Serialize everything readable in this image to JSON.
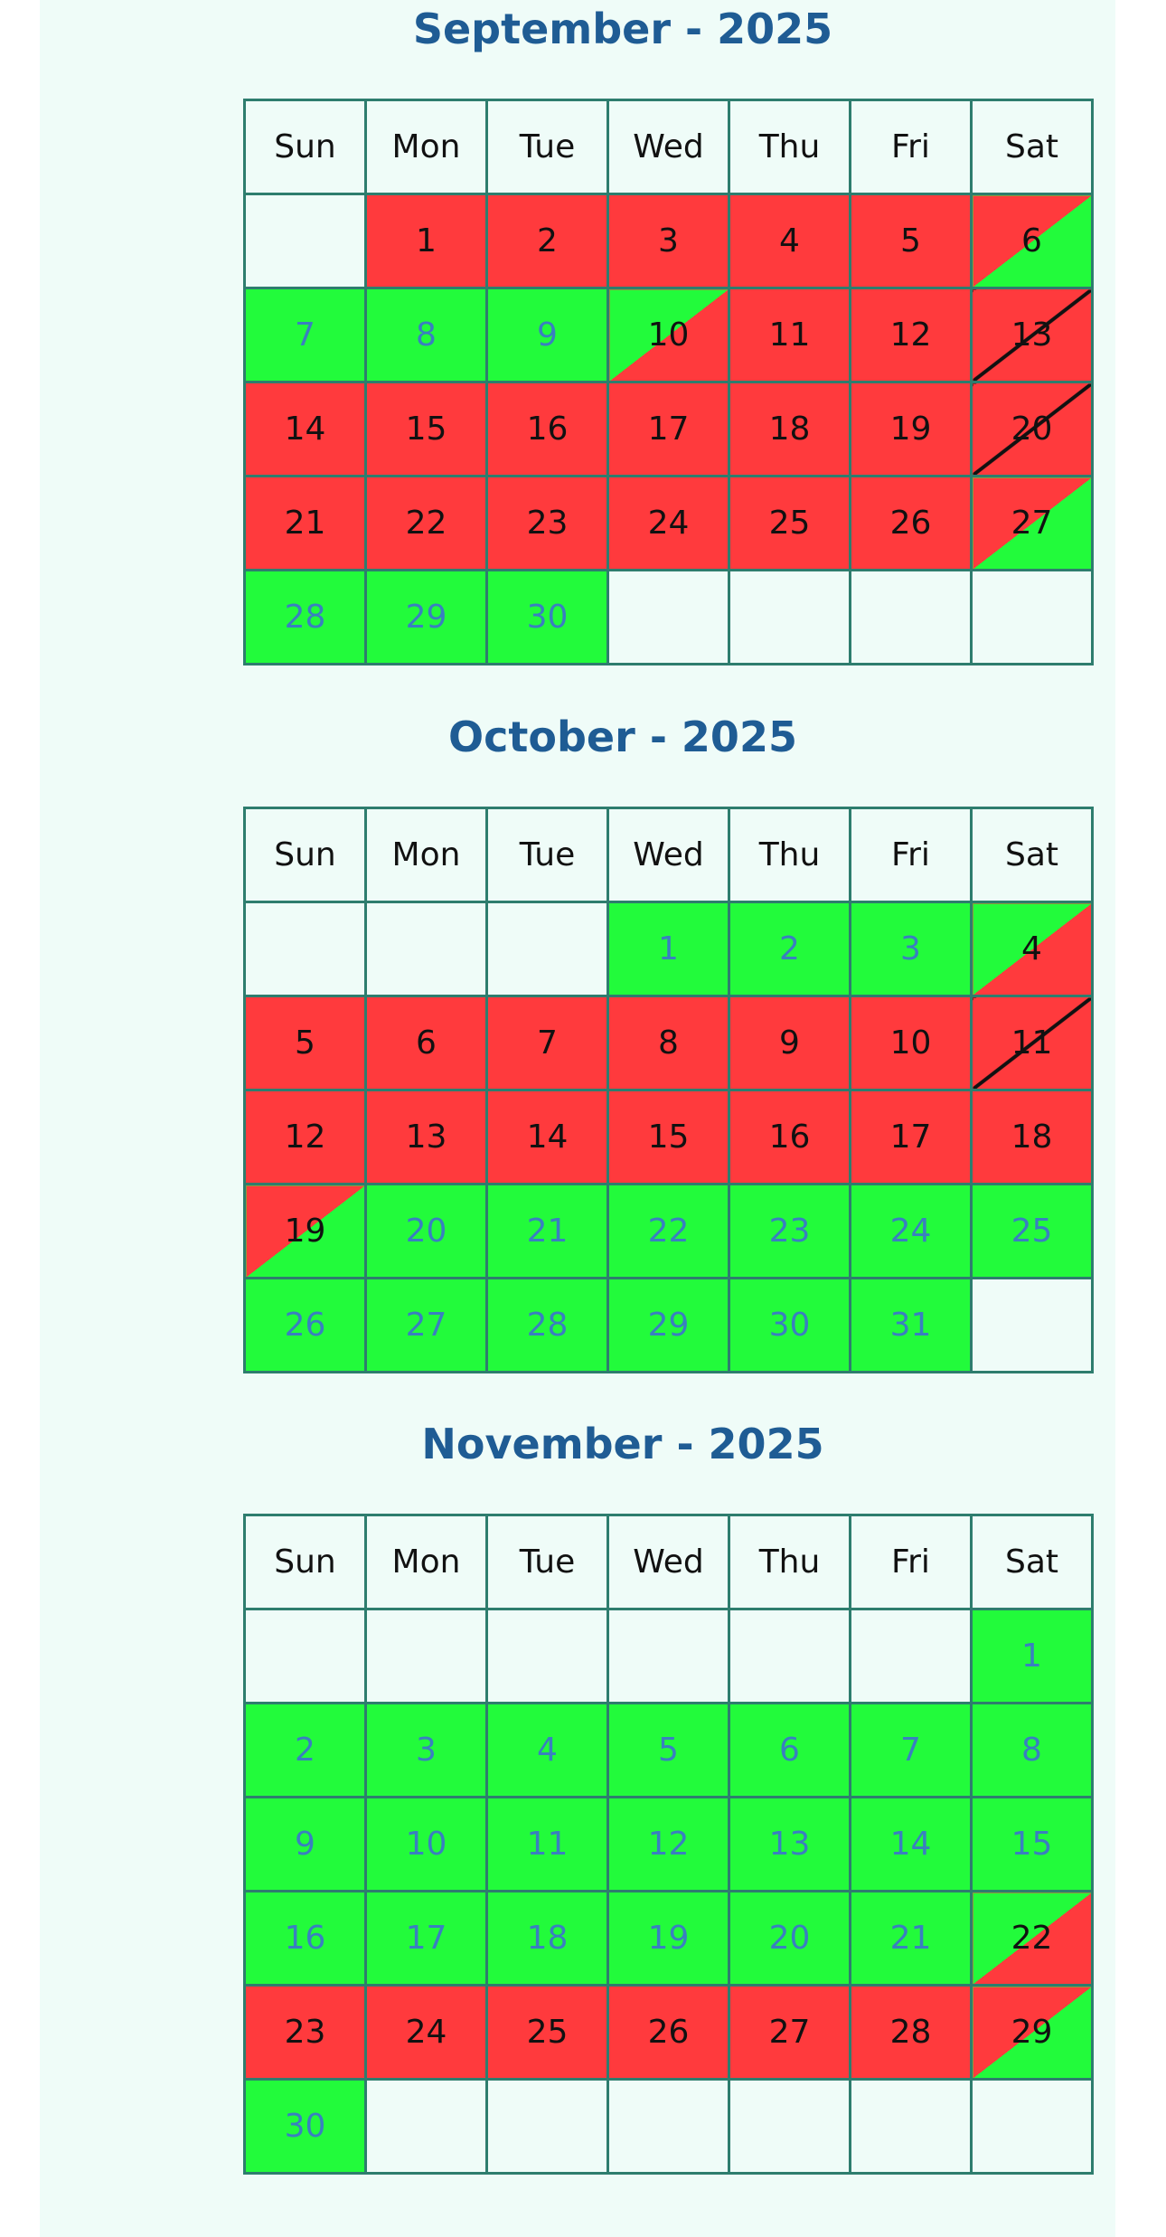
{
  "weekdays": [
    "Sun",
    "Mon",
    "Tue",
    "Wed",
    "Thu",
    "Fri",
    "Sat"
  ],
  "colors": {
    "booked": "#ff3a3d",
    "available": "#22fb3b",
    "available_text": "#3a7fc0",
    "border": "#2e7d6e",
    "title": "#1f5c94",
    "background": "#effcf8"
  },
  "months": [
    {
      "title": "September - 2025",
      "weeks": [
        [
          {
            "d": "",
            "s": "empty"
          },
          {
            "d": "1",
            "s": "red"
          },
          {
            "d": "2",
            "s": "red"
          },
          {
            "d": "3",
            "s": "red"
          },
          {
            "d": "4",
            "s": "red"
          },
          {
            "d": "5",
            "s": "red"
          },
          {
            "d": "6",
            "s": "red-green"
          }
        ],
        [
          {
            "d": "7",
            "s": "green"
          },
          {
            "d": "8",
            "s": "green"
          },
          {
            "d": "9",
            "s": "green"
          },
          {
            "d": "10",
            "s": "green-red"
          },
          {
            "d": "11",
            "s": "red"
          },
          {
            "d": "12",
            "s": "red"
          },
          {
            "d": "13",
            "s": "blocked"
          }
        ],
        [
          {
            "d": "14",
            "s": "red"
          },
          {
            "d": "15",
            "s": "red"
          },
          {
            "d": "16",
            "s": "red"
          },
          {
            "d": "17",
            "s": "red"
          },
          {
            "d": "18",
            "s": "red"
          },
          {
            "d": "19",
            "s": "red"
          },
          {
            "d": "20",
            "s": "blocked"
          }
        ],
        [
          {
            "d": "21",
            "s": "red"
          },
          {
            "d": "22",
            "s": "red"
          },
          {
            "d": "23",
            "s": "red"
          },
          {
            "d": "24",
            "s": "red"
          },
          {
            "d": "25",
            "s": "red"
          },
          {
            "d": "26",
            "s": "red"
          },
          {
            "d": "27",
            "s": "red-green"
          }
        ],
        [
          {
            "d": "28",
            "s": "green"
          },
          {
            "d": "29",
            "s": "green"
          },
          {
            "d": "30",
            "s": "green"
          },
          {
            "d": "",
            "s": "empty"
          },
          {
            "d": "",
            "s": "empty"
          },
          {
            "d": "",
            "s": "empty"
          },
          {
            "d": "",
            "s": "empty"
          }
        ]
      ]
    },
    {
      "title": "October - 2025",
      "weeks": [
        [
          {
            "d": "",
            "s": "empty"
          },
          {
            "d": "",
            "s": "empty"
          },
          {
            "d": "",
            "s": "empty"
          },
          {
            "d": "1",
            "s": "green"
          },
          {
            "d": "2",
            "s": "green"
          },
          {
            "d": "3",
            "s": "green"
          },
          {
            "d": "4",
            "s": "green-red"
          }
        ],
        [
          {
            "d": "5",
            "s": "red"
          },
          {
            "d": "6",
            "s": "red"
          },
          {
            "d": "7",
            "s": "red"
          },
          {
            "d": "8",
            "s": "red"
          },
          {
            "d": "9",
            "s": "red"
          },
          {
            "d": "10",
            "s": "red"
          },
          {
            "d": "11",
            "s": "blocked"
          }
        ],
        [
          {
            "d": "12",
            "s": "red"
          },
          {
            "d": "13",
            "s": "red"
          },
          {
            "d": "14",
            "s": "red"
          },
          {
            "d": "15",
            "s": "red"
          },
          {
            "d": "16",
            "s": "red"
          },
          {
            "d": "17",
            "s": "red"
          },
          {
            "d": "18",
            "s": "red"
          }
        ],
        [
          {
            "d": "19",
            "s": "red-green"
          },
          {
            "d": "20",
            "s": "green"
          },
          {
            "d": "21",
            "s": "green"
          },
          {
            "d": "22",
            "s": "green"
          },
          {
            "d": "23",
            "s": "green"
          },
          {
            "d": "24",
            "s": "green"
          },
          {
            "d": "25",
            "s": "green"
          }
        ],
        [
          {
            "d": "26",
            "s": "green"
          },
          {
            "d": "27",
            "s": "green"
          },
          {
            "d": "28",
            "s": "green"
          },
          {
            "d": "29",
            "s": "green"
          },
          {
            "d": "30",
            "s": "green"
          },
          {
            "d": "31",
            "s": "green"
          },
          {
            "d": "",
            "s": "empty"
          }
        ]
      ]
    },
    {
      "title": "November - 2025",
      "weeks": [
        [
          {
            "d": "",
            "s": "empty"
          },
          {
            "d": "",
            "s": "empty"
          },
          {
            "d": "",
            "s": "empty"
          },
          {
            "d": "",
            "s": "empty"
          },
          {
            "d": "",
            "s": "empty"
          },
          {
            "d": "",
            "s": "empty"
          },
          {
            "d": "1",
            "s": "green"
          }
        ],
        [
          {
            "d": "2",
            "s": "green"
          },
          {
            "d": "3",
            "s": "green"
          },
          {
            "d": "4",
            "s": "green"
          },
          {
            "d": "5",
            "s": "green"
          },
          {
            "d": "6",
            "s": "green"
          },
          {
            "d": "7",
            "s": "green"
          },
          {
            "d": "8",
            "s": "green"
          }
        ],
        [
          {
            "d": "9",
            "s": "green"
          },
          {
            "d": "10",
            "s": "green"
          },
          {
            "d": "11",
            "s": "green"
          },
          {
            "d": "12",
            "s": "green"
          },
          {
            "d": "13",
            "s": "green"
          },
          {
            "d": "14",
            "s": "green"
          },
          {
            "d": "15",
            "s": "green"
          }
        ],
        [
          {
            "d": "16",
            "s": "green"
          },
          {
            "d": "17",
            "s": "green"
          },
          {
            "d": "18",
            "s": "green"
          },
          {
            "d": "19",
            "s": "green"
          },
          {
            "d": "20",
            "s": "green"
          },
          {
            "d": "21",
            "s": "green"
          },
          {
            "d": "22",
            "s": "green-red"
          }
        ],
        [
          {
            "d": "23",
            "s": "red"
          },
          {
            "d": "24",
            "s": "red"
          },
          {
            "d": "25",
            "s": "red"
          },
          {
            "d": "26",
            "s": "red"
          },
          {
            "d": "27",
            "s": "red"
          },
          {
            "d": "28",
            "s": "red"
          },
          {
            "d": "29",
            "s": "red-green"
          }
        ],
        [
          {
            "d": "30",
            "s": "green"
          },
          {
            "d": "",
            "s": "empty"
          },
          {
            "d": "",
            "s": "empty"
          },
          {
            "d": "",
            "s": "empty"
          },
          {
            "d": "",
            "s": "empty"
          },
          {
            "d": "",
            "s": "empty"
          },
          {
            "d": "",
            "s": "empty"
          }
        ]
      ]
    }
  ]
}
